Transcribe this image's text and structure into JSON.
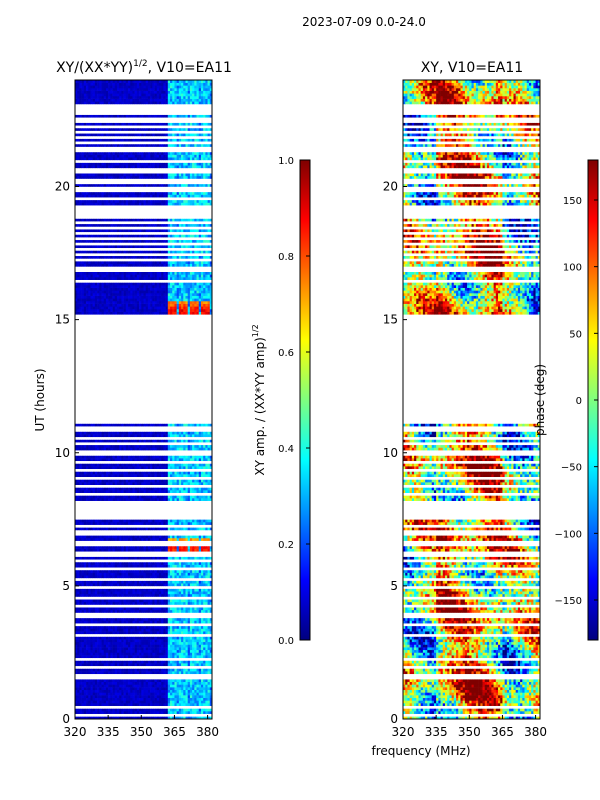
{
  "figure": {
    "suptitle": "2023-07-09 0.0-24.0",
    "xlabel_shared": "frequency (MHz)"
  },
  "colors": {
    "jet": [
      "#00007f",
      "#0000ff",
      "#007fff",
      "#00ffff",
      "#7fff7f",
      "#ffff00",
      "#ff7f00",
      "#ff0000",
      "#7f0000"
    ],
    "gap": "#ffffff",
    "axis": "#000000"
  },
  "chart_data": [
    {
      "id": "amp",
      "type": "heatmap",
      "title_main": "XY/(XX*YY)",
      "title_exp": "1/2",
      "title_suffix": ", V10=EA11",
      "xlabel": "",
      "ylabel": "UT (hours)",
      "xlim": [
        320,
        382
      ],
      "ylim": [
        0,
        24
      ],
      "xticks": [
        320,
        335,
        350,
        365,
        380
      ],
      "yticks": [
        0,
        5,
        10,
        15,
        20
      ],
      "colorbar": {
        "label_main": "XY amp. / (XX*YY amp)",
        "label_exp": "1/2",
        "range": [
          0.0,
          1.0
        ],
        "ticks": [
          0.0,
          0.2,
          0.4,
          0.6,
          0.8,
          1.0
        ],
        "tick_labels": [
          "0.0",
          "0.2",
          "0.4",
          "0.6",
          "0.8",
          "1.0"
        ]
      },
      "data_description": "Mostly near-zero amplitude (dark blue, ~0.05) for 320-362 MHz; 362-382 MHz shows elevated cyan/green streaks (~0.3-0.45). Hot spots near 0.85-0.95 at UT ~15.3 h and ~6.4 h in bands around 364, 369, 374, 379 MHz. Many UT rows flagged (white).",
      "hot_spots": [
        {
          "ut": 15.3,
          "value": 0.95
        },
        {
          "ut": 6.4,
          "value": 0.92
        }
      ],
      "hot_freqs_mhz": [
        364,
        369,
        374,
        379
      ]
    },
    {
      "id": "phase",
      "type": "heatmap",
      "title_main": "XY, V10=EA11",
      "xlabel": "",
      "ylabel": "",
      "xlim": [
        320,
        382
      ],
      "ylim": [
        0,
        24
      ],
      "xticks": [
        320,
        335,
        350,
        365,
        380
      ],
      "yticks": [
        0,
        5,
        10,
        15,
        20
      ],
      "colorbar": {
        "label_main": "phase (deg)",
        "range": [
          -180,
          180
        ],
        "ticks": [
          -150,
          -100,
          -50,
          0,
          50,
          100,
          150
        ],
        "tick_labels": [
          "−150",
          "−100",
          "−50",
          "0",
          "50",
          "100",
          "150"
        ]
      },
      "data_description": "XY phase in degrees spanning -180 to 180; noisy structure with red/orange (positive, ~100-170 deg) regions predominantly in 335-365 MHz and green/cyan/blue elsewhere. Same flagged UT rows as amplitude panel."
    }
  ],
  "flagged_ut_ranges": [
    [
      0.08,
      0.22
    ],
    [
      0.38,
      0.5
    ],
    [
      1.55,
      1.7
    ],
    [
      1.88,
      2.0
    ],
    [
      2.2,
      2.3
    ],
    [
      3.1,
      3.18
    ],
    [
      3.55,
      3.62
    ],
    [
      3.85,
      3.95
    ],
    [
      4.2,
      4.3
    ],
    [
      4.55,
      4.62
    ],
    [
      4.88,
      4.98
    ],
    [
      5.25,
      5.32
    ],
    [
      5.6,
      5.7
    ],
    [
      5.88,
      6.0
    ],
    [
      6.15,
      6.25
    ],
    [
      6.55,
      6.65
    ],
    [
      6.95,
      7.05
    ],
    [
      7.25,
      7.32
    ],
    [
      7.55,
      8.15
    ],
    [
      8.4,
      8.5
    ],
    [
      8.7,
      8.8
    ],
    [
      9.0,
      9.08
    ],
    [
      9.3,
      9.4
    ],
    [
      9.6,
      9.68
    ],
    [
      9.95,
      10.05
    ],
    [
      10.3,
      10.38
    ],
    [
      10.55,
      10.62
    ],
    [
      10.85,
      10.95
    ],
    [
      11.15,
      11.25
    ],
    [
      11.35,
      11.45
    ],
    [
      11.55,
      11.65
    ],
    [
      11.75,
      11.85
    ],
    [
      11.95,
      12.05
    ],
    [
      12.15,
      12.25
    ],
    [
      12.35,
      12.45
    ],
    [
      12.55,
      12.65
    ],
    [
      12.75,
      12.85
    ],
    [
      12.95,
      13.05
    ],
    [
      13.15,
      13.25
    ],
    [
      13.35,
      13.45
    ],
    [
      13.55,
      13.65
    ],
    [
      13.75,
      13.85
    ],
    [
      13.95,
      14.05
    ],
    [
      14.15,
      14.25
    ],
    [
      14.35,
      14.45
    ],
    [
      14.55,
      14.65
    ],
    [
      14.75,
      14.85
    ],
    [
      14.95,
      15.05
    ],
    [
      15.15,
      15.2
    ],
    [
      16.4,
      16.5
    ],
    [
      16.85,
      17.0
    ],
    [
      17.2,
      17.28
    ],
    [
      17.4,
      17.48
    ],
    [
      17.6,
      17.68
    ],
    [
      17.8,
      17.88
    ],
    [
      18.0,
      18.08
    ],
    [
      18.2,
      18.28
    ],
    [
      18.4,
      18.48
    ],
    [
      18.6,
      18.68
    ],
    [
      18.8,
      19.3
    ],
    [
      19.55,
      19.62
    ],
    [
      19.85,
      19.95
    ],
    [
      20.15,
      20.25
    ],
    [
      20.55,
      20.65
    ],
    [
      20.9,
      21.0
    ],
    [
      21.35,
      21.45
    ],
    [
      21.65,
      21.72
    ],
    [
      21.85,
      21.92
    ],
    [
      22.05,
      22.12
    ],
    [
      22.25,
      22.32
    ],
    [
      22.45,
      22.55
    ],
    [
      22.7,
      22.95
    ],
    [
      23.05,
      23.12
    ]
  ]
}
